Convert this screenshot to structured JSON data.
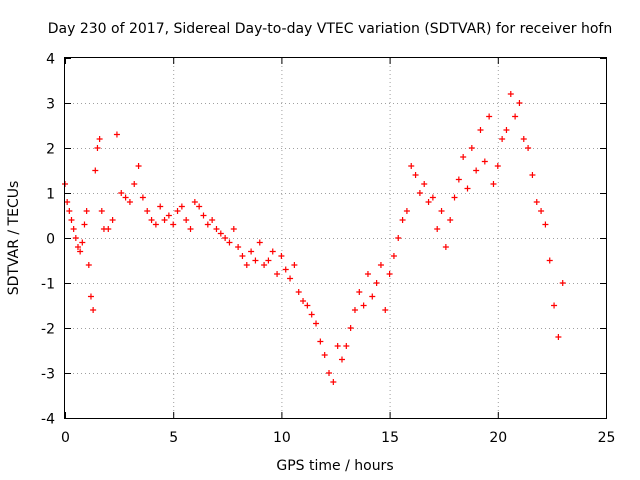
{
  "chart_data": {
    "type": "scatter",
    "title": "Day 230 of 2017, Sidereal Day-to-day VTEC variation (SDTVAR) for receiver hofn",
    "xlabel": "GPS time / hours",
    "ylabel": "SDTVAR / TECUs",
    "xlim": [
      0,
      25
    ],
    "ylim": [
      -4,
      4
    ],
    "grid": true,
    "marker": "plus",
    "color": "#ff0000",
    "x_ticks": [
      {
        "value": 0,
        "label": "0"
      },
      {
        "value": 5,
        "label": "5"
      },
      {
        "value": 10,
        "label": "10"
      },
      {
        "value": 15,
        "label": "15"
      },
      {
        "value": 20,
        "label": "20"
      },
      {
        "value": 25,
        "label": "25"
      }
    ],
    "y_ticks": [
      {
        "value": -4,
        "label": "-4"
      },
      {
        "value": -3,
        "label": "-3"
      },
      {
        "value": -2,
        "label": "-2"
      },
      {
        "value": -1,
        "label": "-1"
      },
      {
        "value": 0,
        "label": "0"
      },
      {
        "value": 1,
        "label": "1"
      },
      {
        "value": 2,
        "label": "2"
      },
      {
        "value": 3,
        "label": "3"
      },
      {
        "value": 4,
        "label": "4"
      }
    ],
    "series": [
      {
        "name": "SDTVAR",
        "x": [
          0.0,
          0.1,
          0.2,
          0.3,
          0.4,
          0.5,
          0.6,
          0.7,
          0.8,
          0.9,
          1.0,
          1.1,
          1.2,
          1.3,
          1.4,
          1.5,
          1.6,
          1.7,
          1.8,
          2.0,
          2.2,
          2.4,
          2.6,
          2.8,
          3.0,
          3.2,
          3.4,
          3.6,
          3.8,
          4.0,
          4.2,
          4.4,
          4.6,
          4.8,
          5.0,
          5.2,
          5.4,
          5.6,
          5.8,
          6.0,
          6.2,
          6.4,
          6.6,
          6.8,
          7.0,
          7.2,
          7.4,
          7.6,
          7.8,
          8.0,
          8.2,
          8.4,
          8.6,
          8.8,
          9.0,
          9.2,
          9.4,
          9.6,
          9.8,
          10.0,
          10.2,
          10.4,
          10.6,
          10.8,
          11.0,
          11.2,
          11.4,
          11.6,
          11.8,
          12.0,
          12.2,
          12.4,
          12.6,
          12.8,
          13.0,
          13.2,
          13.4,
          13.6,
          13.8,
          14.0,
          14.2,
          14.4,
          14.6,
          14.8,
          15.0,
          15.2,
          15.4,
          15.6,
          15.8,
          16.0,
          16.2,
          16.4,
          16.6,
          16.8,
          17.0,
          17.2,
          17.4,
          17.6,
          17.8,
          18.0,
          18.2,
          18.4,
          18.6,
          18.8,
          19.0,
          19.2,
          19.4,
          19.6,
          19.8,
          20.0,
          20.2,
          20.4,
          20.6,
          20.8,
          21.0,
          21.2,
          21.4,
          21.6,
          21.8,
          22.0,
          22.2,
          22.4,
          22.6,
          22.8,
          23.0
        ],
        "y": [
          1.2,
          0.8,
          0.6,
          0.4,
          0.2,
          0.0,
          -0.2,
          -0.3,
          -0.1,
          0.3,
          0.6,
          -0.6,
          -1.3,
          -1.6,
          1.5,
          2.0,
          2.2,
          0.6,
          0.2,
          0.2,
          0.4,
          2.3,
          1.0,
          0.9,
          0.8,
          1.2,
          1.6,
          0.9,
          0.6,
          0.4,
          0.3,
          0.7,
          0.4,
          0.5,
          0.3,
          0.6,
          0.7,
          0.4,
          0.2,
          0.8,
          0.7,
          0.5,
          0.3,
          0.4,
          0.2,
          0.1,
          0.0,
          -0.1,
          0.2,
          -0.2,
          -0.4,
          -0.6,
          -0.3,
          -0.5,
          -0.1,
          -0.6,
          -0.5,
          -0.3,
          -0.8,
          -0.4,
          -0.7,
          -0.9,
          -0.6,
          -1.2,
          -1.4,
          -1.5,
          -1.7,
          -1.9,
          -2.3,
          -2.6,
          -3.0,
          -3.2,
          -2.4,
          -2.7,
          -2.4,
          -2.0,
          -1.6,
          -1.2,
          -1.5,
          -0.8,
          -1.3,
          -1.0,
          -0.6,
          -1.6,
          -0.8,
          -0.4,
          0.0,
          0.4,
          0.6,
          1.6,
          1.4,
          1.0,
          1.2,
          0.8,
          0.9,
          0.2,
          0.6,
          -0.2,
          0.4,
          0.9,
          1.3,
          1.8,
          1.1,
          2.0,
          1.5,
          2.4,
          1.7,
          2.7,
          1.2,
          1.6,
          2.2,
          2.4,
          3.2,
          2.7,
          3.0,
          2.2,
          2.0,
          1.4,
          0.8,
          0.6,
          0.3,
          -0.5,
          -1.5,
          -2.2,
          -1.0
        ]
      }
    ]
  }
}
